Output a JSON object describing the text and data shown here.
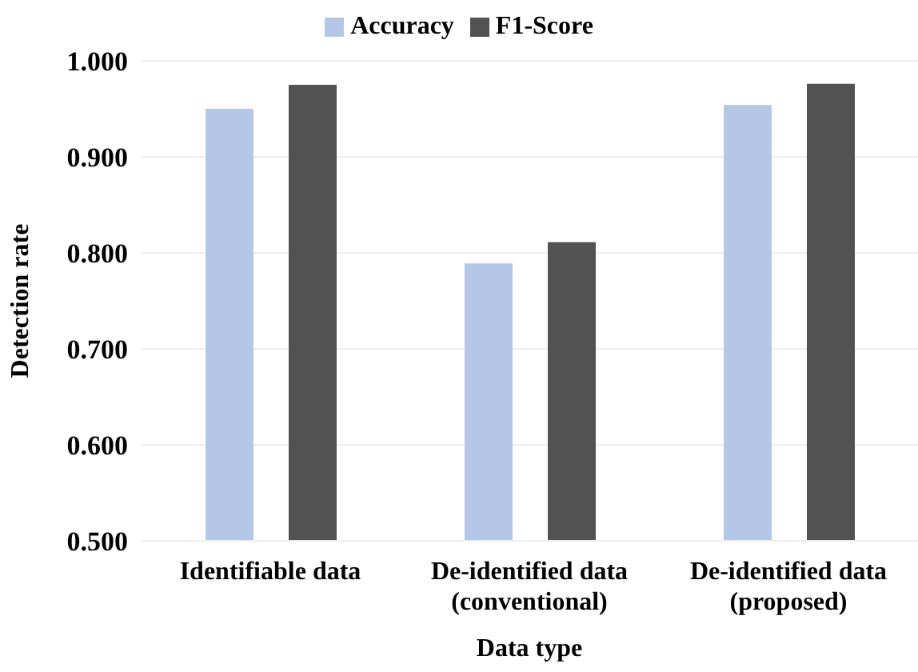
{
  "chart_data": {
    "type": "bar",
    "xlabel": "Data type",
    "ylabel": "Detection rate",
    "categories": [
      "Identifiable data",
      "De-identified data\n(conventional)",
      "De-identified data\n(proposed)"
    ],
    "series": [
      {
        "name": "Accuracy",
        "color": "#b4c7e7",
        "values": [
          0.95,
          0.789,
          0.954
        ]
      },
      {
        "name": "F1-Score",
        "color": "#525252",
        "values": [
          0.975,
          0.811,
          0.976
        ]
      }
    ],
    "ylim": [
      0.5,
      1.0
    ],
    "yticks": [
      {
        "value": 0.5,
        "label": "0.500"
      },
      {
        "value": 0.6,
        "label": "0.600"
      },
      {
        "value": 0.7,
        "label": "0.700"
      },
      {
        "value": 0.8,
        "label": "0.800"
      },
      {
        "value": 0.9,
        "label": "0.900"
      },
      {
        "value": 1.0,
        "label": "1.000"
      }
    ],
    "grid": "y",
    "legend": "top"
  }
}
